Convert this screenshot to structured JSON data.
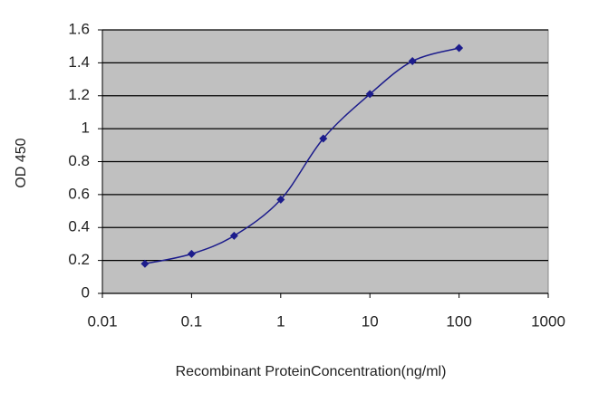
{
  "chart_data": {
    "type": "line",
    "xlabel": "Recombinant ProteinConcentration(ng/ml)",
    "ylabel": "OD 450",
    "x": [
      0.03,
      0.1,
      0.3,
      1,
      3,
      10,
      30,
      100
    ],
    "series": [
      {
        "color": "#1c1c8c",
        "values": [
          0.18,
          0.24,
          0.35,
          0.57,
          0.94,
          1.21,
          1.41,
          1.49
        ]
      }
    ],
    "xscale": "log",
    "xlim": [
      0.01,
      1000
    ],
    "xticks": [
      0.01,
      0.1,
      1,
      10,
      100,
      1000
    ],
    "ylim": [
      0,
      1.6
    ],
    "yticks": [
      0,
      0.2,
      0.4,
      0.6,
      0.8,
      1,
      1.2,
      1.4,
      1.6
    ],
    "grid": true,
    "plot_background": "#c0c0c0"
  }
}
